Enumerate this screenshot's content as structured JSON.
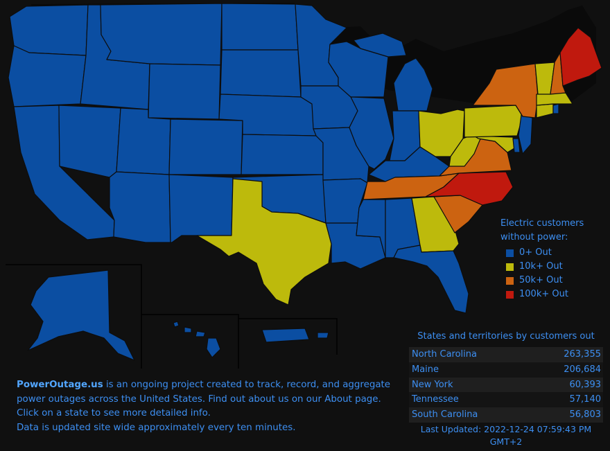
{
  "colors": {
    "background": "#101010",
    "tier0": "#0b4ea2",
    "tier1": "#bdba0c",
    "tier2": "#cc6311",
    "tier3": "#c0190e",
    "text": "#3d8ff2"
  },
  "legend": {
    "title_line1": "Electric customers",
    "title_line2": "without power:",
    "items": [
      {
        "label": "0+ Out",
        "color": "#0b4ea2"
      },
      {
        "label": "10k+ Out",
        "color": "#bdba0c"
      },
      {
        "label": "50k+ Out",
        "color": "#cc6311"
      },
      {
        "label": "100k+ Out",
        "color": "#c0190e"
      }
    ]
  },
  "ranking": {
    "title": "States and territories by customers out",
    "rows": [
      {
        "state": "North Carolina",
        "count": "263,355"
      },
      {
        "state": "Maine",
        "count": "206,684"
      },
      {
        "state": "New York",
        "count": "60,393"
      },
      {
        "state": "Tennessee",
        "count": "57,140"
      },
      {
        "state": "South Carolina",
        "count": "56,803"
      }
    ],
    "last_updated_line1": "Last Updated: 2022-12-24 07:59:43 PM",
    "last_updated_line2": "GMT+2"
  },
  "info": {
    "brand": "PowerOutage.us",
    "line1_rest": " is an ongoing project created to track, record, and aggregate",
    "line2": "power outages across the United States. Find out about us on our About page.",
    "line3": "Click on a state to see more detailed info.",
    "line4": "Data is updated site wide approximately every ten minutes."
  },
  "states": [
    {
      "id": "WA",
      "tier": 0
    },
    {
      "id": "OR",
      "tier": 0
    },
    {
      "id": "CA",
      "tier": 0
    },
    {
      "id": "ID",
      "tier": 0
    },
    {
      "id": "NV",
      "tier": 0
    },
    {
      "id": "MT",
      "tier": 0
    },
    {
      "id": "WY",
      "tier": 0
    },
    {
      "id": "UT",
      "tier": 0
    },
    {
      "id": "AZ",
      "tier": 0
    },
    {
      "id": "CO",
      "tier": 0
    },
    {
      "id": "NM",
      "tier": 0
    },
    {
      "id": "ND",
      "tier": 0
    },
    {
      "id": "SD",
      "tier": 0
    },
    {
      "id": "NE",
      "tier": 0
    },
    {
      "id": "KS",
      "tier": 0
    },
    {
      "id": "OK",
      "tier": 0
    },
    {
      "id": "TX",
      "tier": 1
    },
    {
      "id": "MN",
      "tier": 0
    },
    {
      "id": "IA",
      "tier": 0
    },
    {
      "id": "MO",
      "tier": 0
    },
    {
      "id": "AR",
      "tier": 0
    },
    {
      "id": "LA",
      "tier": 0
    },
    {
      "id": "WI",
      "tier": 0
    },
    {
      "id": "IL",
      "tier": 0
    },
    {
      "id": "MI",
      "tier": 0
    },
    {
      "id": "IN",
      "tier": 0
    },
    {
      "id": "OH",
      "tier": 1
    },
    {
      "id": "KY",
      "tier": 0
    },
    {
      "id": "TN",
      "tier": 2
    },
    {
      "id": "MS",
      "tier": 0
    },
    {
      "id": "AL",
      "tier": 0
    },
    {
      "id": "GA",
      "tier": 1
    },
    {
      "id": "FL",
      "tier": 0
    },
    {
      "id": "SC",
      "tier": 2
    },
    {
      "id": "NC",
      "tier": 3
    },
    {
      "id": "VA",
      "tier": 2
    },
    {
      "id": "WV",
      "tier": 1
    },
    {
      "id": "MD",
      "tier": 1
    },
    {
      "id": "DE",
      "tier": 0
    },
    {
      "id": "PA",
      "tier": 1
    },
    {
      "id": "NJ",
      "tier": 0
    },
    {
      "id": "NY",
      "tier": 2
    },
    {
      "id": "CT",
      "tier": 1
    },
    {
      "id": "RI",
      "tier": 0
    },
    {
      "id": "MA",
      "tier": 1
    },
    {
      "id": "VT",
      "tier": 1
    },
    {
      "id": "NH",
      "tier": 2
    },
    {
      "id": "ME",
      "tier": 3
    },
    {
      "id": "AK",
      "tier": 0
    },
    {
      "id": "HI",
      "tier": 0
    },
    {
      "id": "PR",
      "tier": 0
    }
  ]
}
